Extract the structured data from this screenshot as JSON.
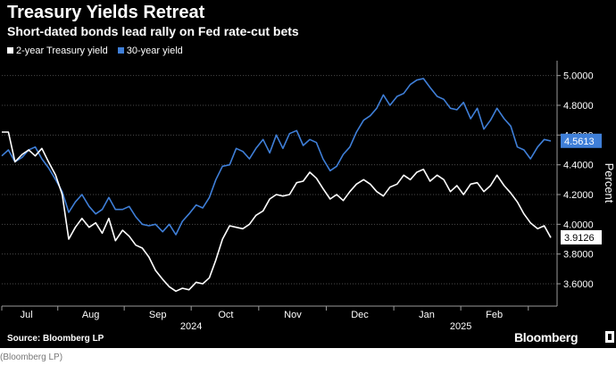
{
  "source": "Source: Bloomberg LP",
  "brand": "Bloomberg",
  "credit": "(Bloomberg LP)",
  "colors": {
    "background": "#000000",
    "series_2y": "#ffffff",
    "series_30y": "#3f7fd8",
    "grid": "#4a4a4a"
  },
  "chart_data": {
    "type": "line",
    "title": "Treasury Yields Retreat",
    "subtitle": "Short-dated bonds lead rally on Fed rate-cut bets",
    "ylabel": "Percent",
    "ylim": [
      3.45,
      5.1
    ],
    "xlim": [
      0,
      100
    ],
    "yticks": [
      3.6,
      3.8,
      4.0,
      4.2,
      4.4,
      4.6,
      4.8,
      5.0
    ],
    "ytick_labels": [
      "3.6000",
      "3.8000",
      "4.0000",
      "4.2000",
      "4.4000",
      "4.6000",
      "4.8000",
      "5.0000"
    ],
    "grid": true,
    "legend": "top-left",
    "month_labels": [
      {
        "label": "Jul",
        "pos": 4.5
      },
      {
        "label": "Aug",
        "pos": 16.2
      },
      {
        "label": "Sep",
        "pos": 28.4
      },
      {
        "label": "Oct",
        "pos": 40.8
      },
      {
        "label": "Nov",
        "pos": 53.0
      },
      {
        "label": "Dec",
        "pos": 65.2
      },
      {
        "label": "Jan",
        "pos": 77.4
      },
      {
        "label": "Feb",
        "pos": 89.7
      }
    ],
    "month_ticks": [
      0,
      10.2,
      22.3,
      34.5,
      46.8,
      59.1,
      71.4,
      83.6,
      95.9
    ],
    "year_labels": [
      {
        "label": "2024",
        "pos": 34.5
      },
      {
        "label": "2025",
        "pos": 83.6
      }
    ],
    "last_value_labels": [
      {
        "series": "30-year yield",
        "value": "4.5613"
      },
      {
        "series": "2-year Treasury yield",
        "value": "3.9126"
      }
    ],
    "series": [
      {
        "name": "2-year Treasury yield",
        "x": [
          0,
          1.2,
          2.4,
          3.7,
          4.9,
          6.1,
          7.3,
          8.5,
          9.8,
          11.0,
          12.2,
          13.4,
          14.6,
          15.9,
          17.1,
          18.3,
          19.5,
          20.7,
          22.0,
          23.2,
          24.4,
          25.6,
          26.8,
          28.0,
          29.3,
          30.5,
          31.7,
          32.9,
          34.1,
          35.4,
          36.6,
          37.8,
          39.0,
          40.2,
          41.5,
          42.7,
          43.9,
          45.1,
          46.3,
          47.6,
          48.8,
          50.0,
          51.2,
          52.4,
          53.7,
          54.9,
          56.1,
          57.3,
          58.5,
          59.8,
          61.0,
          62.2,
          63.4,
          64.6,
          65.9,
          67.1,
          68.3,
          69.5,
          70.7,
          72.0,
          73.2,
          74.4,
          75.6,
          76.8,
          78.0,
          79.3,
          80.5,
          81.7,
          82.9,
          84.1,
          85.4,
          86.6,
          87.8,
          89.0,
          90.2,
          91.5,
          92.7,
          93.9,
          95.1,
          96.3,
          97.6,
          98.8,
          100
        ],
        "values": [
          4.62,
          4.62,
          4.42,
          4.47,
          4.5,
          4.46,
          4.51,
          4.42,
          4.33,
          4.2,
          3.9,
          3.98,
          4.04,
          3.98,
          4.01,
          3.94,
          4.04,
          3.89,
          3.96,
          3.92,
          3.86,
          3.84,
          3.78,
          3.69,
          3.63,
          3.58,
          3.55,
          3.57,
          3.56,
          3.61,
          3.6,
          3.64,
          3.76,
          3.9,
          3.99,
          3.98,
          3.97,
          4.0,
          4.06,
          4.09,
          4.17,
          4.2,
          4.19,
          4.2,
          4.28,
          4.29,
          4.35,
          4.31,
          4.24,
          4.17,
          4.2,
          4.16,
          4.22,
          4.27,
          4.3,
          4.27,
          4.22,
          4.19,
          4.25,
          4.27,
          4.33,
          4.3,
          4.35,
          4.37,
          4.29,
          4.33,
          4.3,
          4.22,
          4.26,
          4.2,
          4.27,
          4.28,
          4.22,
          4.26,
          4.33,
          4.26,
          4.21,
          4.15,
          4.07,
          4.01,
          3.97,
          3.99,
          3.91
        ]
      },
      {
        "name": "30-year yield",
        "x": [
          0,
          1.2,
          2.4,
          3.7,
          4.9,
          6.1,
          7.3,
          8.5,
          9.8,
          11.0,
          12.2,
          13.4,
          14.6,
          15.9,
          17.1,
          18.3,
          19.5,
          20.7,
          22.0,
          23.2,
          24.4,
          25.6,
          26.8,
          28.0,
          29.3,
          30.5,
          31.7,
          32.9,
          34.1,
          35.4,
          36.6,
          37.8,
          39.0,
          40.2,
          41.5,
          42.7,
          43.9,
          45.1,
          46.3,
          47.6,
          48.8,
          50.0,
          51.2,
          52.4,
          53.7,
          54.9,
          56.1,
          57.3,
          58.5,
          59.8,
          61.0,
          62.2,
          63.4,
          64.6,
          65.9,
          67.1,
          68.3,
          69.5,
          70.7,
          72.0,
          73.2,
          74.4,
          75.6,
          76.8,
          78.0,
          79.3,
          80.5,
          81.7,
          82.9,
          84.1,
          85.4,
          86.6,
          87.8,
          89.0,
          90.2,
          91.5,
          92.7,
          93.9,
          95.1,
          96.3,
          97.6,
          98.8,
          100
        ],
        "values": [
          4.46,
          4.5,
          4.42,
          4.45,
          4.5,
          4.52,
          4.44,
          4.38,
          4.3,
          4.22,
          4.08,
          4.15,
          4.2,
          4.12,
          4.07,
          4.1,
          4.18,
          4.1,
          4.1,
          4.12,
          4.05,
          4.0,
          3.99,
          4.0,
          3.95,
          4.0,
          3.93,
          4.02,
          4.07,
          4.13,
          4.11,
          4.18,
          4.3,
          4.39,
          4.4,
          4.51,
          4.49,
          4.44,
          4.51,
          4.57,
          4.48,
          4.6,
          4.51,
          4.61,
          4.63,
          4.53,
          4.57,
          4.55,
          4.44,
          4.36,
          4.39,
          4.47,
          4.52,
          4.62,
          4.7,
          4.73,
          4.78,
          4.87,
          4.8,
          4.86,
          4.88,
          4.94,
          4.97,
          4.98,
          4.92,
          4.86,
          4.84,
          4.78,
          4.77,
          4.82,
          4.71,
          4.78,
          4.64,
          4.7,
          4.78,
          4.71,
          4.66,
          4.52,
          4.5,
          4.44,
          4.52,
          4.57,
          4.56
        ]
      }
    ]
  }
}
